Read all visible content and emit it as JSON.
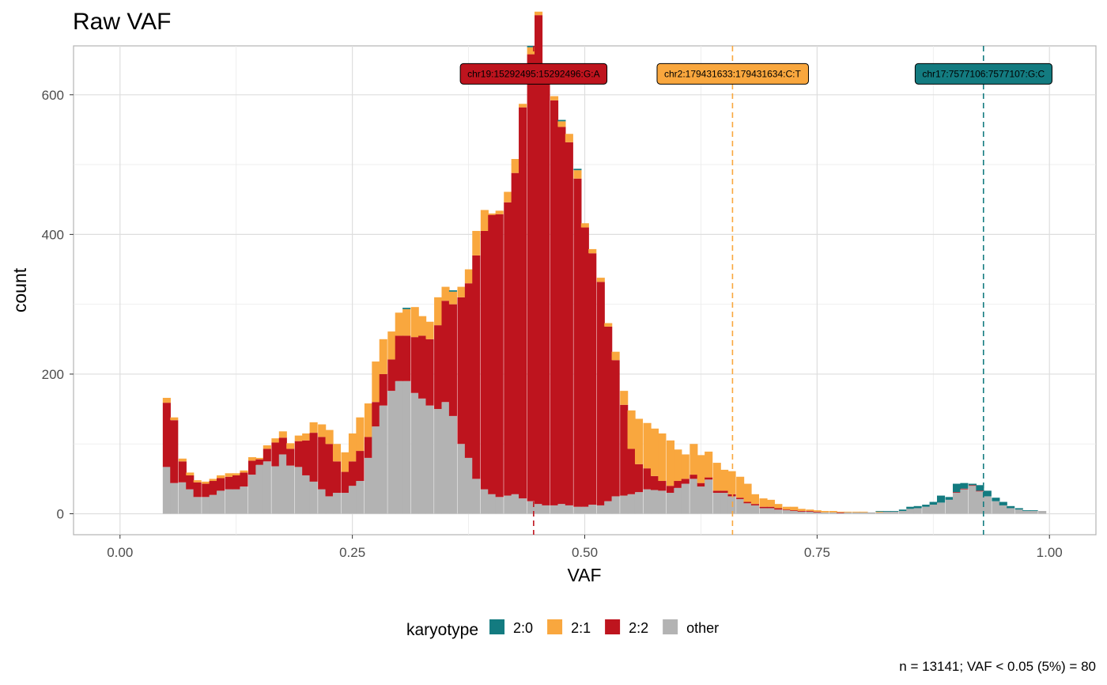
{
  "chart_data": {
    "type": "bar",
    "subtype": "stacked-histogram",
    "title": "Raw VAF",
    "xlabel": "VAF",
    "ylabel": "count",
    "xlim": [
      -0.05,
      1.05
    ],
    "ylim": [
      -30,
      670
    ],
    "x_ticks": [
      0,
      0.25,
      0.5,
      0.75,
      1
    ],
    "x_tick_labels": [
      "0.00",
      "0.25",
      "0.50",
      "0.75",
      "1.00"
    ],
    "y_ticks": [
      0,
      200,
      400,
      600
    ],
    "y_tick_labels": [
      "0",
      "200",
      "400",
      "600"
    ],
    "grid": true,
    "legend_position": "bottom",
    "legend_title": "karyotype",
    "bin_width": 0.00833,
    "bins_start": [
      0.046,
      0.054,
      0.063,
      0.071,
      0.079,
      0.088,
      0.096,
      0.104,
      0.113,
      0.121,
      0.129,
      0.138,
      0.146,
      0.154,
      0.163,
      0.171,
      0.179,
      0.188,
      0.196,
      0.204,
      0.213,
      0.221,
      0.229,
      0.238,
      0.246,
      0.254,
      0.263,
      0.271,
      0.279,
      0.288,
      0.296,
      0.304,
      0.313,
      0.321,
      0.329,
      0.338,
      0.346,
      0.354,
      0.363,
      0.371,
      0.379,
      0.388,
      0.396,
      0.404,
      0.413,
      0.421,
      0.429,
      0.438,
      0.446,
      0.454,
      0.463,
      0.471,
      0.479,
      0.488,
      0.496,
      0.504,
      0.513,
      0.521,
      0.529,
      0.538,
      0.546,
      0.554,
      0.563,
      0.571,
      0.579,
      0.588,
      0.596,
      0.604,
      0.613,
      0.621,
      0.629,
      0.638,
      0.646,
      0.654,
      0.663,
      0.671,
      0.679,
      0.688,
      0.696,
      0.704,
      0.713,
      0.721,
      0.729,
      0.738,
      0.746,
      0.754,
      0.763,
      0.771,
      0.779,
      0.788,
      0.796,
      0.804,
      0.813,
      0.821,
      0.829,
      0.838,
      0.846,
      0.854,
      0.863,
      0.871,
      0.879,
      0.888,
      0.896,
      0.904,
      0.913,
      0.921,
      0.929,
      0.938,
      0.946,
      0.954,
      0.963,
      0.971,
      0.979,
      0.988
    ],
    "series": [
      {
        "name": "other",
        "color": "#b3b3b3",
        "values": [
          67,
          44,
          45,
          35,
          24,
          24,
          27,
          33,
          35,
          35,
          39,
          56,
          70,
          75,
          68,
          85,
          69,
          67,
          55,
          46,
          35,
          25,
          30,
          30,
          40,
          47,
          80,
          125,
          155,
          176,
          190,
          190,
          173,
          165,
          155,
          150,
          160,
          140,
          100,
          80,
          50,
          35,
          28,
          24,
          26,
          28,
          22,
          18,
          14,
          12,
          12,
          14,
          12,
          10,
          10,
          13,
          12,
          18,
          25,
          26,
          28,
          31,
          35,
          34,
          33,
          30,
          37,
          43,
          50,
          39,
          49,
          30,
          30,
          25,
          21,
          15,
          12,
          8,
          8,
          6,
          5,
          4,
          3,
          3,
          2,
          2,
          2,
          1,
          2,
          2,
          2,
          2,
          2,
          3,
          3,
          4,
          7,
          8,
          10,
          13,
          16,
          20,
          30,
          35,
          40,
          32,
          25,
          18,
          12,
          8,
          6,
          4,
          4,
          4
        ]
      },
      {
        "name": "2:2",
        "color": "#be141e",
        "values": [
          92,
          90,
          30,
          20,
          21,
          19,
          20,
          18,
          18,
          20,
          20,
          20,
          8,
          18,
          34,
          24,
          24,
          37,
          50,
          70,
          75,
          75,
          45,
          30,
          35,
          43,
          30,
          35,
          45,
          45,
          65,
          65,
          80,
          90,
          95,
          120,
          145,
          160,
          210,
          250,
          320,
          370,
          400,
          405,
          420,
          460,
          560,
          640,
          700,
          620,
          580,
          540,
          520,
          470,
          400,
          360,
          320,
          250,
          195,
          130,
          65,
          40,
          30,
          20,
          14,
          10,
          10,
          7,
          6,
          5,
          3,
          3,
          3,
          3,
          2,
          2,
          2,
          2,
          2,
          2,
          1,
          1,
          1,
          1,
          1,
          0,
          0,
          1,
          0,
          0,
          0,
          0,
          0,
          0,
          0,
          0,
          0,
          0,
          0,
          0,
          0,
          0,
          1,
          1,
          1,
          1,
          0,
          0,
          0,
          0,
          0,
          0,
          0,
          0
        ]
      },
      {
        "name": "2:1",
        "color": "#f9a73e",
        "values": [
          7,
          4,
          4,
          4,
          3,
          3,
          3,
          4,
          5,
          3,
          3,
          5,
          2,
          5,
          6,
          9,
          8,
          8,
          10,
          15,
          18,
          20,
          25,
          28,
          40,
          48,
          48,
          58,
          50,
          40,
          33,
          38,
          43,
          28,
          25,
          40,
          20,
          18,
          15,
          20,
          35,
          30,
          2,
          5,
          15,
          20,
          5,
          10,
          5,
          5,
          6,
          8,
          12,
          12,
          6,
          6,
          6,
          5,
          12,
          20,
          55,
          65,
          65,
          68,
          68,
          65,
          45,
          35,
          44,
          40,
          37,
          40,
          30,
          33,
          30,
          26,
          14,
          12,
          10,
          6,
          4,
          5,
          3,
          2,
          2,
          2,
          2,
          1,
          1,
          1,
          1,
          0,
          1,
          0,
          0,
          0,
          0,
          0,
          0,
          0,
          0,
          0,
          0,
          0,
          0,
          0,
          0,
          0,
          0,
          0,
          0,
          0,
          0,
          0
        ]
      },
      {
        "name": "2:0",
        "color": "#137b80",
        "values": [
          0,
          0,
          0,
          0,
          0,
          0,
          0,
          0,
          0,
          0,
          0,
          0,
          0,
          0,
          0,
          0,
          0,
          0,
          0,
          0,
          0,
          0,
          0,
          0,
          0,
          0,
          0,
          0,
          0,
          0,
          0,
          2,
          0,
          0,
          0,
          0,
          0,
          2,
          0,
          0,
          0,
          0,
          0,
          0,
          0,
          0,
          0,
          2,
          0,
          0,
          0,
          2,
          0,
          2,
          0,
          0,
          0,
          0,
          0,
          0,
          0,
          0,
          0,
          0,
          0,
          0,
          0,
          0,
          0,
          0,
          0,
          0,
          0,
          0,
          0,
          0,
          0,
          0,
          0,
          0,
          0,
          0,
          0,
          0,
          0,
          0,
          0,
          0,
          0,
          0,
          0,
          0,
          1,
          1,
          1,
          2,
          3,
          3,
          3,
          4,
          10,
          4,
          12,
          8,
          2,
          8,
          8,
          5,
          5,
          3,
          2,
          1,
          1,
          0
        ]
      }
    ],
    "annotations": [
      {
        "label": "chr19:15292495:15292496:G:A",
        "x": 0.445,
        "color": "#be141e",
        "text_color": "#000000"
      },
      {
        "label": "chr2:179431633:179431634:C:T",
        "x": 0.659,
        "color": "#f9a73e",
        "text_color": "#000000"
      },
      {
        "label": "chr17:7577106:7577107:G:C",
        "x": 0.929,
        "color": "#137b80",
        "text_color": "#000000"
      }
    ],
    "legend": [
      {
        "label": "2:0",
        "color": "#137b80"
      },
      {
        "label": "2:1",
        "color": "#f9a73e"
      },
      {
        "label": "2:2",
        "color": "#be141e"
      },
      {
        "label": "other",
        "color": "#b3b3b3"
      }
    ],
    "caption": "n = 13141; VAF < 0.05 (5%) = 80"
  }
}
